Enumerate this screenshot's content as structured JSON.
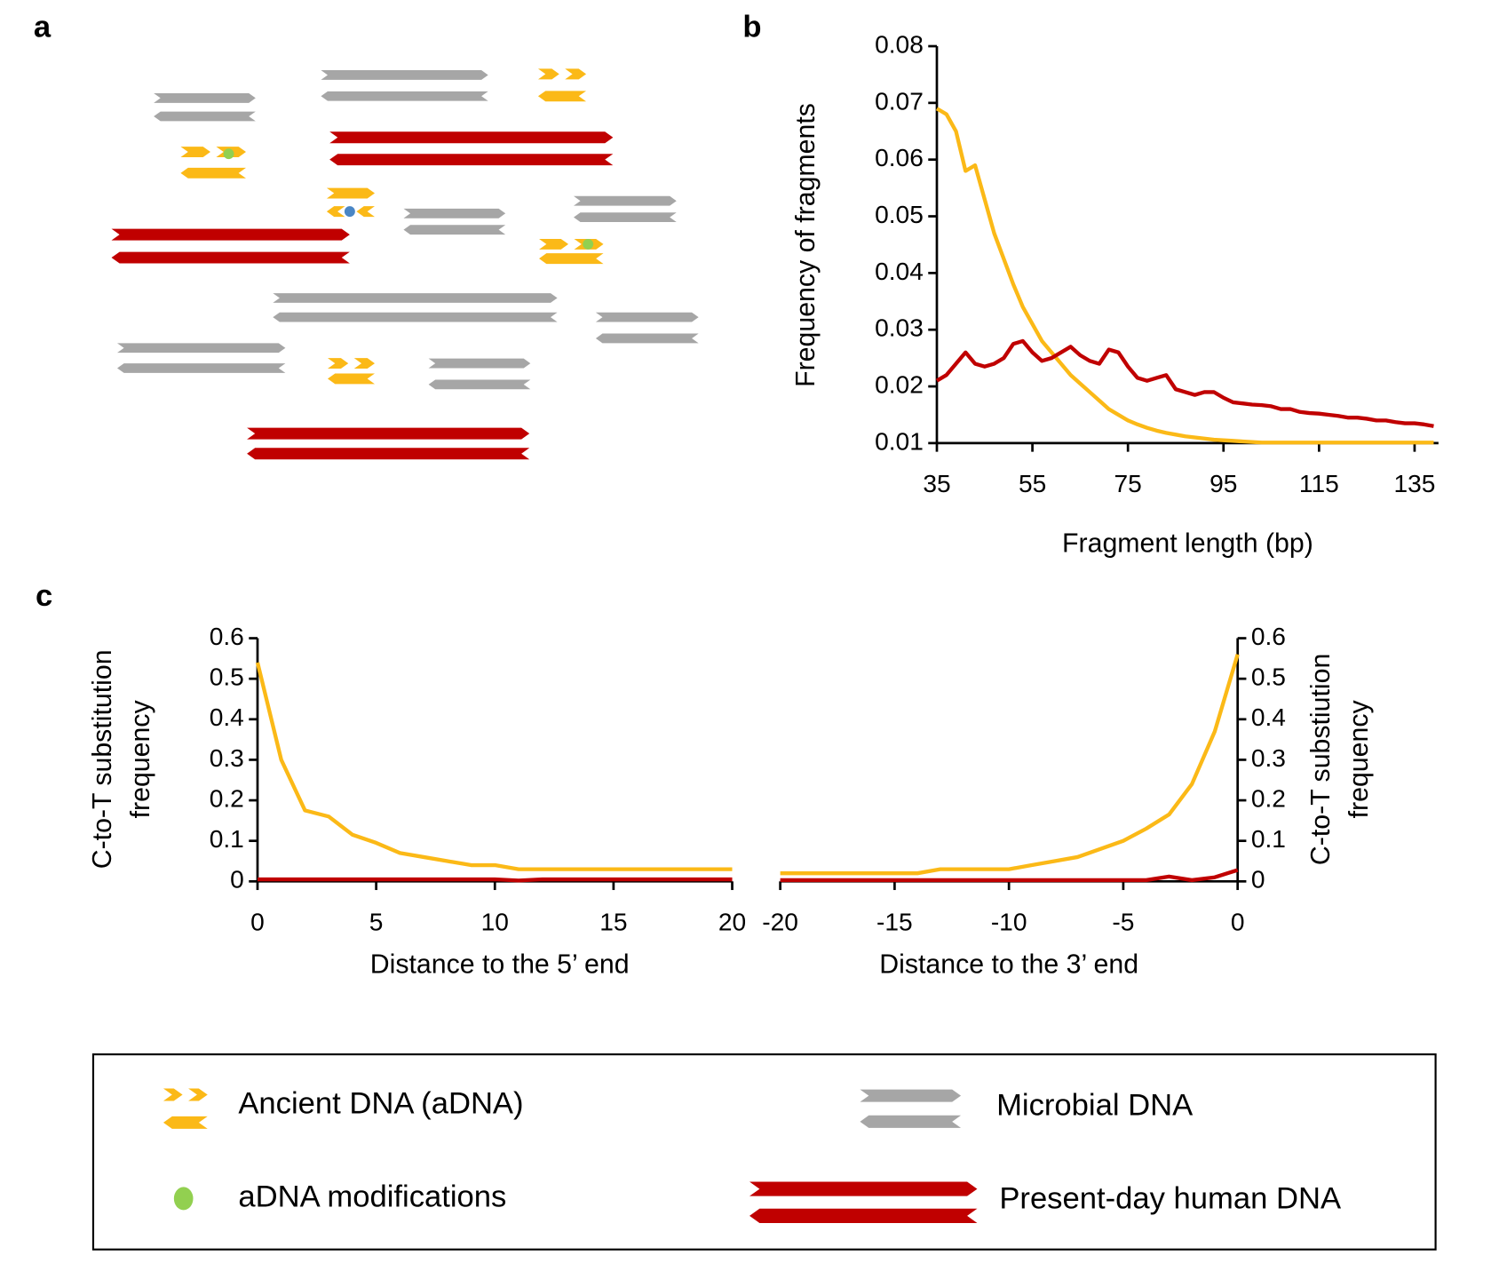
{
  "panel_labels": [
    "a",
    "b",
    "c"
  ],
  "chart_data": [
    {
      "type": "line",
      "xlabel": "Fragment length (bp)",
      "ylabel": [
        "Frequency of fragments"
      ],
      "x": [
        35,
        37,
        39,
        41,
        43,
        45,
        47,
        49,
        51,
        53,
        55,
        57,
        59,
        61,
        63,
        65,
        67,
        69,
        71,
        73,
        75,
        77,
        79,
        81,
        83,
        85,
        87,
        89,
        91,
        93,
        95,
        97,
        99,
        101,
        103,
        105,
        107,
        109,
        111,
        113,
        115,
        117,
        119,
        121,
        123,
        125,
        127,
        129,
        131,
        133,
        135,
        137,
        139
      ],
      "series": [
        {
          "color": "#fbb917",
          "values": [
            0.069,
            0.068,
            0.065,
            0.058,
            0.059,
            0.053,
            0.047,
            0.0425,
            0.038,
            0.034,
            0.031,
            0.028,
            0.026,
            0.024,
            0.022,
            0.0205,
            0.019,
            0.0175,
            0.016,
            0.015,
            0.014,
            0.0133,
            0.0127,
            0.0122,
            0.0118,
            0.0115,
            0.0112,
            0.011,
            0.0108,
            0.0106,
            0.0105,
            0.0104,
            0.0103,
            0.0102,
            0.0101,
            0.0101,
            0.0101,
            0.0101,
            0.0101,
            0.0101,
            0.0101,
            0.0101,
            0.0101,
            0.0101,
            0.0101,
            0.0101,
            0.0101,
            0.0101,
            0.0101,
            0.0101,
            0.0101,
            0.0101,
            0.0101
          ]
        },
        {
          "color": "#c00000",
          "values": [
            0.021,
            0.022,
            0.024,
            0.026,
            0.024,
            0.0235,
            0.024,
            0.025,
            0.0275,
            0.028,
            0.026,
            0.0245,
            0.025,
            0.026,
            0.027,
            0.0255,
            0.0245,
            0.024,
            0.0265,
            0.026,
            0.0235,
            0.0215,
            0.021,
            0.0215,
            0.022,
            0.0195,
            0.019,
            0.0185,
            0.019,
            0.019,
            0.018,
            0.0172,
            0.017,
            0.0168,
            0.0167,
            0.0165,
            0.016,
            0.016,
            0.0155,
            0.0153,
            0.0152,
            0.015,
            0.0148,
            0.0145,
            0.0145,
            0.0143,
            0.014,
            0.014,
            0.0137,
            0.0135,
            0.0135,
            0.0133,
            0.013
          ]
        }
      ],
      "xlim": [
        35,
        140
      ],
      "xticks": [
        35,
        55,
        75,
        95,
        115,
        135
      ],
      "ylim": [
        0.01,
        0.08
      ],
      "yticks": [
        0.01,
        0.02,
        0.03,
        0.04,
        0.05,
        0.06,
        0.07,
        0.08
      ],
      "yaxis": "left"
    },
    {
      "type": "line",
      "xlabel": "Distance to the 5’ end",
      "ylabel": [
        "C-to-T substitution",
        "frequency"
      ],
      "x": [
        0,
        1,
        2,
        3,
        4,
        5,
        6,
        7,
        8,
        9,
        10,
        11,
        12,
        13,
        14,
        15,
        16,
        17,
        18,
        19,
        20
      ],
      "series": [
        {
          "color": "#fbb917",
          "values": [
            0.54,
            0.3,
            0.175,
            0.16,
            0.115,
            0.095,
            0.07,
            0.06,
            0.05,
            0.04,
            0.04,
            0.03,
            0.03,
            0.03,
            0.03,
            0.03,
            0.03,
            0.03,
            0.03,
            0.03,
            0.03
          ]
        },
        {
          "color": "#c00000",
          "values": [
            0.005,
            0.005,
            0.005,
            0.005,
            0.005,
            0.005,
            0.005,
            0.005,
            0.005,
            0.005,
            0.005,
            0.002,
            0.005,
            0.005,
            0.005,
            0.005,
            0.005,
            0.005,
            0.005,
            0.005,
            0.005
          ]
        }
      ],
      "xlim": [
        0,
        20
      ],
      "xticks": [
        0,
        5,
        10,
        15,
        20
      ],
      "ylim": [
        0,
        0.6
      ],
      "yticks": [
        0,
        0.1,
        0.2,
        0.3,
        0.4,
        0.5,
        0.6
      ],
      "yaxis": "left"
    },
    {
      "type": "line",
      "xlabel": "Distance to the 3’ end",
      "ylabel": [
        "C-to-T substiution",
        "frequency"
      ],
      "x": [
        -20,
        -19,
        -18,
        -17,
        -16,
        -15,
        -14,
        -13,
        -12,
        -11,
        -10,
        -9,
        -8,
        -7,
        -6,
        -5,
        -4,
        -3,
        -2,
        -1,
        0
      ],
      "series": [
        {
          "color": "#fbb917",
          "values": [
            0.02,
            0.02,
            0.02,
            0.02,
            0.02,
            0.02,
            0.02,
            0.03,
            0.03,
            0.03,
            0.03,
            0.04,
            0.05,
            0.06,
            0.08,
            0.1,
            0.13,
            0.165,
            0.24,
            0.37,
            0.56
          ]
        },
        {
          "color": "#c00000",
          "values": [
            0.003,
            0.003,
            0.003,
            0.003,
            0.003,
            0.003,
            0.003,
            0.003,
            0.003,
            0.003,
            0.003,
            0.003,
            0.003,
            0.003,
            0.003,
            0.003,
            0.003,
            0.012,
            0.003,
            0.01,
            0.028
          ]
        }
      ],
      "xlim": [
        -20,
        0
      ],
      "xticks": [
        -20,
        -15,
        -10,
        -5,
        0
      ],
      "ylim": [
        0,
        0.6
      ],
      "yticks": [
        0,
        0.1,
        0.2,
        0.3,
        0.4,
        0.5,
        0.6
      ],
      "yaxis": "right"
    }
  ],
  "legend": [
    "Ancient DNA (aDNA)",
    "aDNA modifications",
    "Microbial DNA",
    "Present-day human DNA"
  ]
}
